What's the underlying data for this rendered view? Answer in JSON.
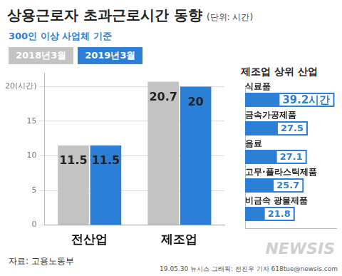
{
  "header": {
    "title": "상용근로자 초과근로시간 동향",
    "unit": "(단위: 시간)"
  },
  "chart_data": [
    {
      "type": "bar",
      "subtitle": "300인 이상 사업체 기준",
      "categories": [
        "전산업",
        "제조업"
      ],
      "series": [
        {
          "name": "2018년3월",
          "color": "#c3c3c3",
          "values": [
            11.5,
            20.7
          ]
        },
        {
          "name": "2019년3월",
          "color": "#2b7fd6",
          "values": [
            11.5,
            20
          ]
        }
      ],
      "ylim": [
        0,
        22
      ],
      "yticks": [
        0,
        5,
        10,
        15,
        {
          "value": 20,
          "label": "20(시간)"
        }
      ],
      "grid": true,
      "legend": "upper left",
      "data_labels": true
    },
    {
      "type": "bar",
      "title": "제조업 상위 산업",
      "orientation": "horizontal",
      "categories": [
        "식료품",
        "금속가공제품",
        "음료",
        "고무·플라스틱제품",
        "비금속 광물제품"
      ],
      "values": [
        39.2,
        27.5,
        27.1,
        25.7,
        21.8
      ],
      "value_labels": [
        "39.2시간",
        "27.5",
        "27.1",
        "25.7",
        "21.8"
      ],
      "color": "#2b7fd6",
      "xlim": [
        0,
        40
      ],
      "grid": false,
      "data_labels": true,
      "tick_labels": false
    }
  ],
  "footer": {
    "source": "자료: 고용노동부",
    "watermark": "NEWSIS",
    "credit": "19.05.30 뉴시스 그래픽: 전진우 기자 618tue@newsis.com"
  }
}
